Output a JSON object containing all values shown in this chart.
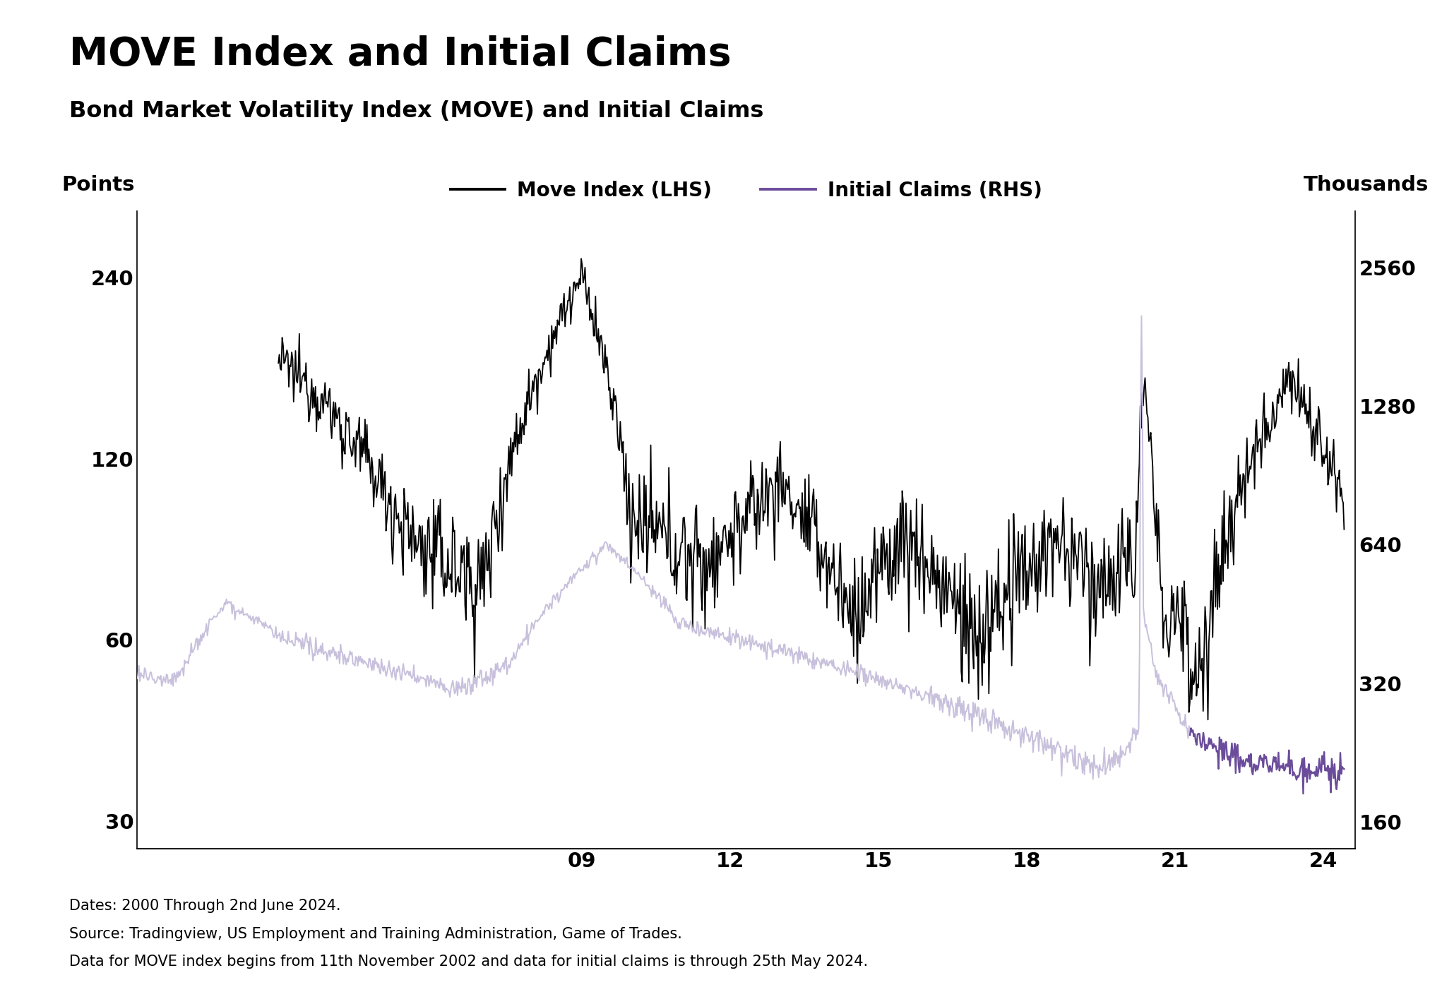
{
  "title": "MOVE Index and Initial Claims",
  "subtitle": "Bond Market Volatility Index (MOVE) and Initial Claims",
  "lhs_label": "Points",
  "rhs_label": "Thousands",
  "legend_move": "Move Index (LHS)",
  "legend_claims": "Initial Claims (RHS)",
  "footnote1": "Dates: 2000 Through 2nd June 2024.",
  "footnote2": "Source: Tradingview, US Employment and Training Administration, Game of Trades.",
  "footnote3": "Data for MOVE index begins from 11th November 2002 and data for initial claims is through 25th May 2024.",
  "lhs_yticks": [
    30,
    60,
    120,
    240
  ],
  "rhs_yticks": [
    160,
    320,
    640,
    1280,
    2560
  ],
  "lhs_ylim": [
    27,
    310
  ],
  "rhs_ylim": [
    140,
    3400
  ],
  "xlim": [
    2000.0,
    2024.65
  ],
  "xtick_years": [
    2009,
    2012,
    2015,
    2018,
    2021,
    2024
  ],
  "xtick_labels": [
    "09",
    "12",
    "15",
    "18",
    "21",
    "24"
  ],
  "move_color": "#000000",
  "claims_light_color": "#c8c0dc",
  "claims_dark_color": "#6b4c9a",
  "claims_transition_year": 2021.3,
  "bg_color": "#ffffff",
  "title_fontsize": 40,
  "subtitle_fontsize": 23,
  "tick_fontsize": 21,
  "footnote_fontsize": 15,
  "legend_fontsize": 20,
  "move_linewidth": 1.3,
  "claims_linewidth": 1.4
}
